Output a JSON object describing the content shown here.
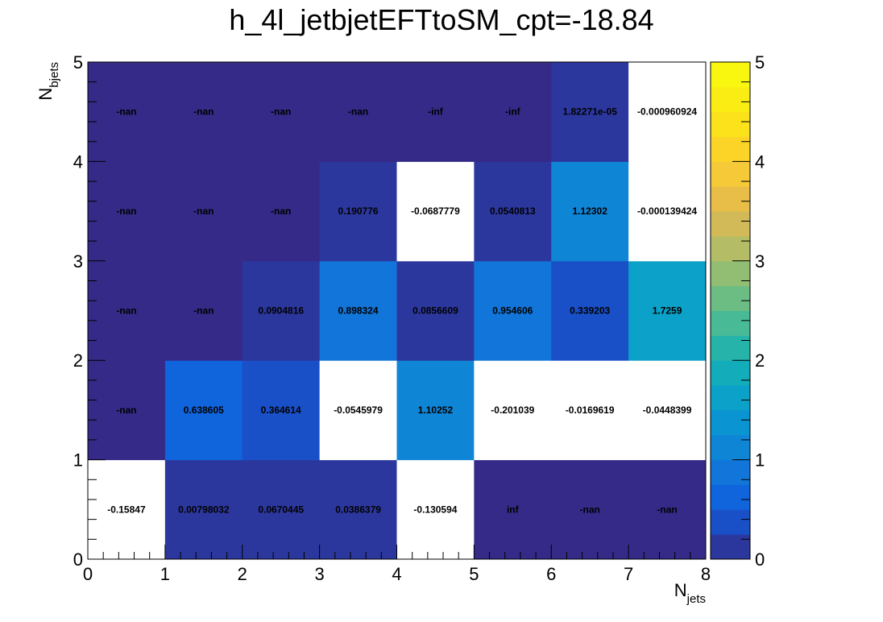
{
  "chart_data": {
    "type": "heatmap",
    "title": "h_4l_jetbjetEFTtoSM_cpt=-18.84",
    "xlabel": "N",
    "xlabel_sub": "jets",
    "ylabel": "N",
    "ylabel_sub": "bjets",
    "xlim": [
      0,
      8
    ],
    "ylim": [
      0,
      5
    ],
    "x_bins": [
      0,
      1,
      2,
      3,
      4,
      5,
      6,
      7,
      8
    ],
    "y_bins": [
      0,
      1,
      2,
      3,
      4,
      5
    ],
    "x_ticks": [
      "0",
      "1",
      "2",
      "3",
      "4",
      "5",
      "6",
      "7",
      "8"
    ],
    "y_ticks": [
      "0",
      "1",
      "2",
      "3",
      "4",
      "5"
    ],
    "z_range": [
      0,
      5
    ],
    "z_ticks": [
      "0",
      "1",
      "2",
      "3",
      "4",
      "5"
    ],
    "colormap": "parula",
    "nan_color": "#352a87",
    "grid": false,
    "rows": [
      {
        "y_bin": 0,
        "labels": [
          "-0.15847",
          "0.00798032",
          "0.0670445",
          "0.0386379",
          "-0.130594",
          "inf",
          "-nan",
          "-nan"
        ],
        "values": [
          -0.15847,
          0.00798032,
          0.0670445,
          0.0386379,
          -0.130594,
          null,
          null,
          null
        ]
      },
      {
        "y_bin": 1,
        "labels": [
          "-nan",
          "0.638605",
          "0.364614",
          "-0.0545979",
          "1.10252",
          "-0.201039",
          "-0.0169619",
          "-0.0448399"
        ],
        "values": [
          null,
          0.638605,
          0.364614,
          -0.0545979,
          1.10252,
          -0.201039,
          -0.0169619,
          -0.0448399
        ]
      },
      {
        "y_bin": 2,
        "labels": [
          "-nan",
          "-nan",
          "0.0904816",
          "0.898324",
          "0.0856609",
          "0.954606",
          "0.339203",
          "1.7259"
        ],
        "values": [
          null,
          null,
          0.0904816,
          0.898324,
          0.0856609,
          0.954606,
          0.339203,
          1.7259
        ]
      },
      {
        "y_bin": 3,
        "labels": [
          "-nan",
          "-nan",
          "-nan",
          "0.190776",
          "-0.0687779",
          "0.0540813",
          "1.12302",
          "-0.000139424"
        ],
        "values": [
          null,
          null,
          null,
          0.190776,
          -0.0687779,
          0.0540813,
          1.12302,
          -0.000139424
        ]
      },
      {
        "y_bin": 4,
        "labels": [
          "-nan",
          "-nan",
          "-nan",
          "-nan",
          "-inf",
          "-inf",
          "1.82271e-05",
          "-0.000960924"
        ],
        "values": [
          null,
          null,
          null,
          null,
          null,
          null,
          1.82271e-05,
          -0.000960924
        ]
      }
    ]
  }
}
